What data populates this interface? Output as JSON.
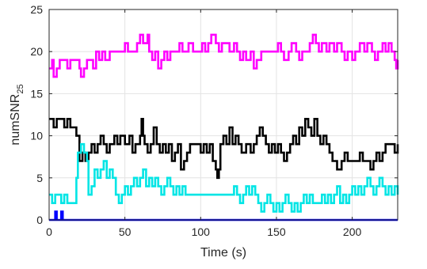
{
  "chart_data": {
    "type": "line",
    "title": "",
    "xlabel": "Time (s)",
    "ylabel": {
      "base": "numSNR",
      "subscript": "25"
    },
    "xlim": [
      0,
      230
    ],
    "ylim": [
      0,
      25
    ],
    "xticks": [
      0,
      50,
      100,
      150,
      200
    ],
    "yticks": [
      0,
      5,
      10,
      15,
      20,
      25
    ],
    "grid": true,
    "series": [
      {
        "color": "#ff00ff",
        "points": [
          [
            0,
            18
          ],
          [
            2,
            19
          ],
          [
            3,
            17
          ],
          [
            5,
            18
          ],
          [
            7,
            19
          ],
          [
            10,
            19
          ],
          [
            12,
            18
          ],
          [
            14,
            19
          ],
          [
            18,
            19
          ],
          [
            20,
            18
          ],
          [
            21,
            17
          ],
          [
            23,
            18
          ],
          [
            25,
            19
          ],
          [
            27,
            19
          ],
          [
            29,
            18
          ],
          [
            31,
            20
          ],
          [
            33,
            19
          ],
          [
            35,
            20
          ],
          [
            37,
            19
          ],
          [
            40,
            20
          ],
          [
            45,
            20
          ],
          [
            48,
            20
          ],
          [
            50,
            21
          ],
          [
            52,
            20
          ],
          [
            55,
            20
          ],
          [
            58,
            21
          ],
          [
            60,
            22
          ],
          [
            62,
            21
          ],
          [
            65,
            22
          ],
          [
            66,
            20
          ],
          [
            68,
            19
          ],
          [
            70,
            20
          ],
          [
            72,
            18
          ],
          [
            74,
            19
          ],
          [
            76,
            20
          ],
          [
            78,
            19
          ],
          [
            80,
            20
          ],
          [
            84,
            20
          ],
          [
            86,
            21
          ],
          [
            88,
            20
          ],
          [
            92,
            21
          ],
          [
            95,
            20
          ],
          [
            99,
            20
          ],
          [
            101,
            21
          ],
          [
            103,
            20
          ],
          [
            105,
            21
          ],
          [
            107,
            22
          ],
          [
            110,
            21
          ],
          [
            112,
            20
          ],
          [
            114,
            21
          ],
          [
            117,
            21
          ],
          [
            119,
            20
          ],
          [
            122,
            21
          ],
          [
            124,
            20
          ],
          [
            126,
            19
          ],
          [
            128,
            20
          ],
          [
            130,
            19
          ],
          [
            133,
            20
          ],
          [
            135,
            18
          ],
          [
            137,
            19
          ],
          [
            140,
            20
          ],
          [
            149,
            20
          ],
          [
            151,
            21
          ],
          [
            153,
            20
          ],
          [
            155,
            19
          ],
          [
            158,
            20
          ],
          [
            160,
            21
          ],
          [
            163,
            20
          ],
          [
            165,
            19
          ],
          [
            167,
            20
          ],
          [
            170,
            20
          ],
          [
            172,
            21
          ],
          [
            174,
            22
          ],
          [
            176,
            21
          ],
          [
            178,
            20
          ],
          [
            180,
            21
          ],
          [
            183,
            20
          ],
          [
            185,
            21
          ],
          [
            188,
            20
          ],
          [
            190,
            21
          ],
          [
            193,
            20
          ],
          [
            195,
            19
          ],
          [
            197,
            20
          ],
          [
            200,
            19
          ],
          [
            202,
            20
          ],
          [
            205,
            21
          ],
          [
            208,
            20
          ],
          [
            210,
            21
          ],
          [
            213,
            20
          ],
          [
            215,
            19
          ],
          [
            217,
            20
          ],
          [
            220,
            21
          ],
          [
            222,
            20
          ],
          [
            224,
            21
          ],
          [
            226,
            20
          ],
          [
            228,
            19
          ],
          [
            229,
            18
          ],
          [
            230,
            19
          ]
        ]
      },
      {
        "color": "#000000",
        "points": [
          [
            0,
            12
          ],
          [
            3,
            11
          ],
          [
            5,
            12
          ],
          [
            8,
            12
          ],
          [
            10,
            11
          ],
          [
            12,
            12
          ],
          [
            14,
            11
          ],
          [
            16,
            11
          ],
          [
            18,
            10
          ],
          [
            20,
            7
          ],
          [
            22,
            8
          ],
          [
            24,
            7
          ],
          [
            26,
            8
          ],
          [
            28,
            9
          ],
          [
            30,
            8
          ],
          [
            32,
            9
          ],
          [
            34,
            10
          ],
          [
            36,
            9
          ],
          [
            38,
            8
          ],
          [
            40,
            9
          ],
          [
            43,
            10
          ],
          [
            45,
            9
          ],
          [
            47,
            10
          ],
          [
            50,
            9
          ],
          [
            53,
            10
          ],
          [
            55,
            8
          ],
          [
            57,
            9
          ],
          [
            60,
            10
          ],
          [
            61,
            12
          ],
          [
            62,
            10
          ],
          [
            63,
            9
          ],
          [
            65,
            8
          ],
          [
            67,
            9
          ],
          [
            69,
            11
          ],
          [
            71,
            9
          ],
          [
            73,
            8
          ],
          [
            75,
            9
          ],
          [
            77,
            8
          ],
          [
            79,
            9
          ],
          [
            81,
            7
          ],
          [
            83,
            8
          ],
          [
            85,
            9
          ],
          [
            87,
            6
          ],
          [
            89,
            7
          ],
          [
            91,
            8
          ],
          [
            93,
            9
          ],
          [
            98,
            9
          ],
          [
            100,
            8
          ],
          [
            102,
            9
          ],
          [
            104,
            8
          ],
          [
            106,
            9
          ],
          [
            108,
            7
          ],
          [
            110,
            6
          ],
          [
            111,
            5
          ],
          [
            112,
            6
          ],
          [
            113,
            9
          ],
          [
            115,
            10
          ],
          [
            117,
            9
          ],
          [
            119,
            11
          ],
          [
            121,
            9
          ],
          [
            123,
            10
          ],
          [
            125,
            9
          ],
          [
            127,
            8
          ],
          [
            130,
            9
          ],
          [
            133,
            8
          ],
          [
            135,
            9
          ],
          [
            137,
            10
          ],
          [
            139,
            11
          ],
          [
            141,
            10
          ],
          [
            143,
            9
          ],
          [
            145,
            8
          ],
          [
            147,
            9
          ],
          [
            149,
            8
          ],
          [
            151,
            9
          ],
          [
            153,
            8
          ],
          [
            155,
            7
          ],
          [
            157,
            8
          ],
          [
            159,
            9
          ],
          [
            161,
            10
          ],
          [
            163,
            9
          ],
          [
            165,
            11
          ],
          [
            167,
            10
          ],
          [
            169,
            12
          ],
          [
            171,
            11
          ],
          [
            173,
            10
          ],
          [
            175,
            12
          ],
          [
            177,
            10
          ],
          [
            179,
            9
          ],
          [
            181,
            10
          ],
          [
            183,
            9
          ],
          [
            185,
            8
          ],
          [
            187,
            7
          ],
          [
            190,
            6
          ],
          [
            193,
            7
          ],
          [
            195,
            8
          ],
          [
            197,
            7
          ],
          [
            203,
            7
          ],
          [
            205,
            8
          ],
          [
            207,
            7
          ],
          [
            210,
            7
          ],
          [
            212,
            6
          ],
          [
            214,
            7
          ],
          [
            216,
            8
          ],
          [
            218,
            7
          ],
          [
            220,
            8
          ],
          [
            222,
            9
          ],
          [
            226,
            9
          ],
          [
            228,
            8
          ],
          [
            230,
            9
          ]
        ]
      },
      {
        "color": "#00e5e5",
        "points": [
          [
            0,
            3
          ],
          [
            2,
            2
          ],
          [
            4,
            3
          ],
          [
            7,
            3
          ],
          [
            8,
            2
          ],
          [
            10,
            3
          ],
          [
            12,
            2
          ],
          [
            16,
            2
          ],
          [
            18,
            5
          ],
          [
            19,
            8
          ],
          [
            21,
            9
          ],
          [
            23,
            8
          ],
          [
            25,
            7
          ],
          [
            26,
            3
          ],
          [
            28,
            4
          ],
          [
            30,
            6
          ],
          [
            32,
            5
          ],
          [
            34,
            6
          ],
          [
            36,
            7
          ],
          [
            38,
            5
          ],
          [
            40,
            6
          ],
          [
            42,
            5
          ],
          [
            44,
            3
          ],
          [
            46,
            2
          ],
          [
            48,
            3
          ],
          [
            50,
            4
          ],
          [
            52,
            3
          ],
          [
            54,
            4
          ],
          [
            56,
            5
          ],
          [
            58,
            4
          ],
          [
            60,
            5
          ],
          [
            62,
            6
          ],
          [
            64,
            4
          ],
          [
            66,
            5
          ],
          [
            68,
            4
          ],
          [
            70,
            5
          ],
          [
            72,
            4
          ],
          [
            74,
            3
          ],
          [
            76,
            4
          ],
          [
            78,
            5
          ],
          [
            80,
            4
          ],
          [
            82,
            3
          ],
          [
            84,
            4
          ],
          [
            86,
            3
          ],
          [
            88,
            4
          ],
          [
            90,
            3
          ],
          [
            120,
            3
          ],
          [
            122,
            4
          ],
          [
            124,
            3
          ],
          [
            126,
            2
          ],
          [
            128,
            3
          ],
          [
            130,
            4
          ],
          [
            132,
            3
          ],
          [
            134,
            4
          ],
          [
            136,
            3
          ],
          [
            138,
            2
          ],
          [
            140,
            1
          ],
          [
            142,
            2
          ],
          [
            144,
            3
          ],
          [
            146,
            2
          ],
          [
            148,
            1
          ],
          [
            150,
            2
          ],
          [
            152,
            1
          ],
          [
            154,
            2
          ],
          [
            156,
            3
          ],
          [
            158,
            2
          ],
          [
            160,
            1
          ],
          [
            162,
            2
          ],
          [
            164,
            1
          ],
          [
            166,
            2
          ],
          [
            168,
            3
          ],
          [
            170,
            2
          ],
          [
            172,
            3
          ],
          [
            174,
            2
          ],
          [
            178,
            2
          ],
          [
            180,
            3
          ],
          [
            182,
            2
          ],
          [
            184,
            3
          ],
          [
            186,
            2
          ],
          [
            188,
            3
          ],
          [
            190,
            4
          ],
          [
            192,
            2
          ],
          [
            194,
            3
          ],
          [
            196,
            2
          ],
          [
            198,
            3
          ],
          [
            200,
            4
          ],
          [
            202,
            3
          ],
          [
            204,
            4
          ],
          [
            206,
            3
          ],
          [
            208,
            4
          ],
          [
            210,
            5
          ],
          [
            212,
            4
          ],
          [
            214,
            3
          ],
          [
            216,
            4
          ],
          [
            218,
            5
          ],
          [
            220,
            4
          ],
          [
            222,
            3
          ],
          [
            224,
            4
          ],
          [
            226,
            3
          ],
          [
            228,
            4
          ],
          [
            230,
            3
          ]
        ]
      },
      {
        "color": "#0000ff",
        "points": [
          [
            0,
            0
          ],
          [
            3,
            0
          ],
          [
            4,
            1
          ],
          [
            5,
            0
          ],
          [
            7,
            0
          ],
          [
            8,
            1
          ],
          [
            9,
            0
          ],
          [
            230,
            0
          ]
        ]
      }
    ]
  }
}
